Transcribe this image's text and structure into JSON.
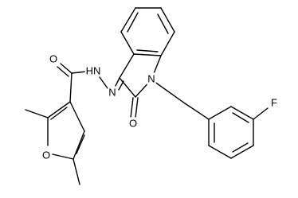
{
  "atoms": [
    "O",
    "HN",
    "N",
    "N",
    "O",
    "O",
    "F"
  ]
}
